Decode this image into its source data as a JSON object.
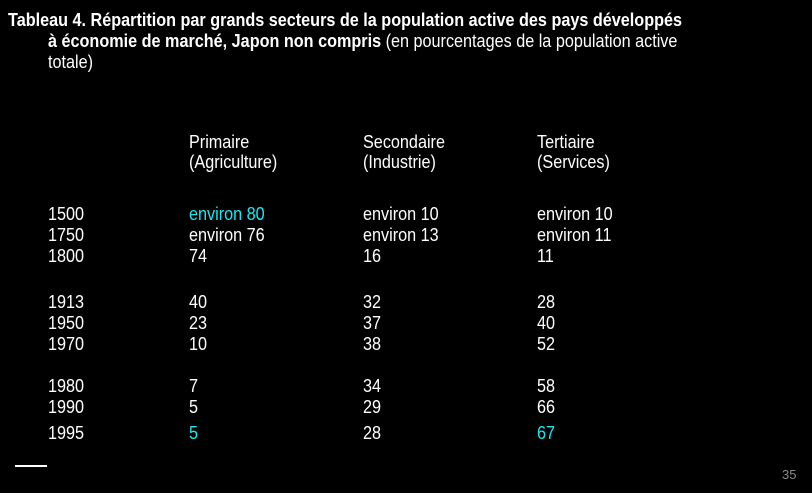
{
  "title": {
    "line1": "Tableau 4. Répartition par grands secteurs de la population active des pays développés",
    "line2_bold": "à économie de marché, Japon non compris",
    "line2_normal": " (en pourcentages de la population active",
    "line3": "totale)"
  },
  "columns": [
    {
      "line1": "Primaire",
      "line2": "(Agriculture)"
    },
    {
      "line1": "Secondaire",
      "line2": "(Industrie)"
    },
    {
      "line1": "Tertiaire",
      "line2": "(Services)"
    }
  ],
  "rows": [
    {
      "year": "1500",
      "cells": [
        "environ  80",
        "environ  10",
        "environ  10"
      ],
      "highlight": [
        true,
        false,
        false
      ]
    },
    {
      "year": "1750",
      "cells": [
        "environ  76",
        "environ  13",
        "environ  11"
      ],
      "highlight": [
        false,
        false,
        false
      ]
    },
    {
      "year": "1800",
      "cells": [
        "74",
        "16",
        "11"
      ],
      "highlight": [
        false,
        false,
        false
      ]
    },
    {
      "year": "1913",
      "cells": [
        "40",
        "32",
        "28"
      ],
      "highlight": [
        false,
        false,
        false
      ]
    },
    {
      "year": "1950",
      "cells": [
        "23",
        "37",
        "40"
      ],
      "highlight": [
        false,
        false,
        false
      ]
    },
    {
      "year": "1970",
      "cells": [
        "10",
        "38",
        "52"
      ],
      "highlight": [
        false,
        false,
        false
      ]
    },
    {
      "year": "1980",
      "cells": [
        "7",
        "34",
        "58"
      ],
      "highlight": [
        false,
        false,
        false
      ]
    },
    {
      "year": "1990",
      "cells": [
        "5",
        "29",
        "66"
      ],
      "highlight": [
        false,
        false,
        false
      ]
    },
    {
      "year": "1995",
      "cells": [
        "5",
        "28",
        "67"
      ],
      "highlight": [
        true,
        false,
        true
      ]
    }
  ],
  "colors": {
    "highlight": "#1fe6ee",
    "text": "#ffffff",
    "background": "#000000"
  },
  "page_number": "35"
}
